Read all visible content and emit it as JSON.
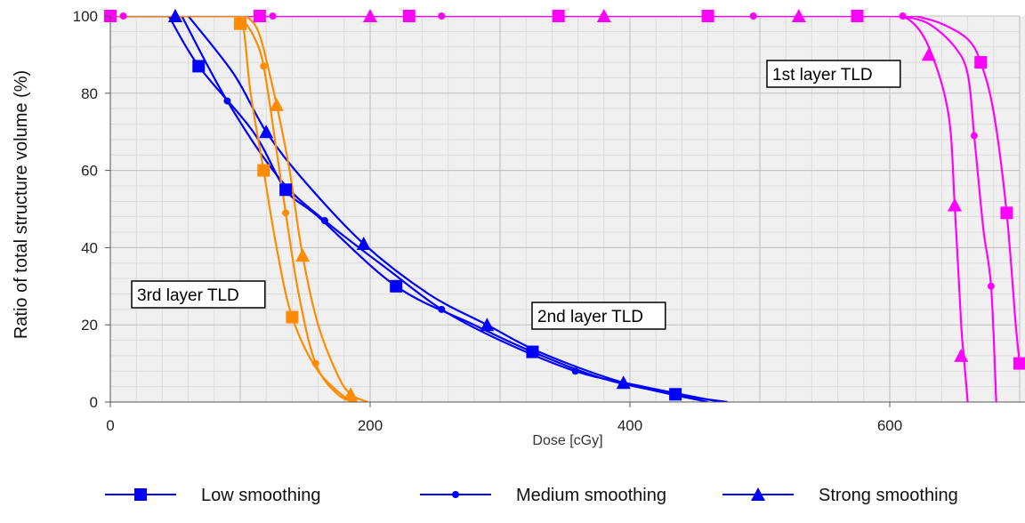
{
  "chart_data": {
    "type": "line",
    "xlabel": "Dose [cGy]",
    "ylabel": "Ratio of total structure volume (%)",
    "xlim": [
      0,
      700
    ],
    "ylim": [
      0,
      100
    ],
    "x_ticks": [
      "0",
      "200",
      "400",
      "600"
    ],
    "y_ticks": [
      "0",
      "20",
      "40",
      "60",
      "80",
      "100"
    ],
    "grid": true,
    "legend_position": "bottom",
    "groups": [
      {
        "label": "1st layer TLD",
        "color": "#ff00ff",
        "series": [
          {
            "name": "Low smoothing",
            "marker": "square",
            "points": [
              [
                620,
                100
              ],
              [
                640,
                98
              ],
              [
                660,
                94
              ],
              [
                670,
                88
              ],
              [
                680,
                75
              ],
              [
                690,
                49
              ],
              [
                697,
                20
              ],
              [
                700,
                10
              ]
            ],
            "marker_values": [
              [
                0,
                100
              ],
              [
                115,
                100
              ],
              [
                230,
                100
              ],
              [
                345,
                100
              ],
              [
                460,
                100
              ],
              [
                575,
                100
              ],
              [
                670,
                88
              ],
              [
                690,
                49
              ],
              [
                700,
                10
              ]
            ]
          },
          {
            "name": "Medium smoothing",
            "marker": "circle",
            "points": [
              [
                610,
                100
              ],
              [
                630,
                98
              ],
              [
                650,
                92
              ],
              [
                660,
                85
              ],
              [
                665,
                69
              ],
              [
                672,
                45
              ],
              [
                678,
                30
              ],
              [
                682,
                0
              ]
            ],
            "marker_values": [
              [
                10,
                100
              ],
              [
                125,
                100
              ],
              [
                255,
                100
              ],
              [
                380,
                100
              ],
              [
                495,
                100
              ],
              [
                610,
                100
              ],
              [
                665,
                69
              ],
              [
                678,
                30
              ]
            ]
          },
          {
            "name": "Strong smoothing",
            "marker": "triangle",
            "points": [
              [
                600,
                100
              ],
              [
                615,
                99
              ],
              [
                630,
                92
              ],
              [
                645,
                75
              ],
              [
                650,
                51
              ],
              [
                655,
                20
              ],
              [
                657,
                12
              ],
              [
                660,
                0
              ]
            ],
            "marker_values": [
              [
                50,
                100
              ],
              [
                200,
                100
              ],
              [
                380,
                100
              ],
              [
                530,
                100
              ],
              [
                630,
                90
              ],
              [
                650,
                51
              ],
              [
                655,
                12
              ]
            ]
          }
        ]
      },
      {
        "label": "2nd layer TLD",
        "color": "#0000ff",
        "series": [
          {
            "name": "Low smoothing",
            "marker": "square",
            "points": [
              [
                45,
                100
              ],
              [
                68,
                87
              ],
              [
                110,
                70
              ],
              [
                135,
                55
              ],
              [
                160,
                48
              ],
              [
                220,
                30
              ],
              [
                280,
                20
              ],
              [
                325,
                13
              ],
              [
                380,
                6
              ],
              [
                435,
                2
              ],
              [
                475,
                0
              ]
            ],
            "marker_values": [
              [
                68,
                87
              ],
              [
                135,
                55
              ],
              [
                220,
                30
              ],
              [
                325,
                13
              ],
              [
                435,
                2
              ]
            ]
          },
          {
            "name": "Medium smoothing",
            "marker": "circle",
            "points": [
              [
                55,
                100
              ],
              [
                90,
                78
              ],
              [
                130,
                58
              ],
              [
                165,
                47
              ],
              [
                215,
                34
              ],
              [
                255,
                24
              ],
              [
                300,
                16
              ],
              [
                358,
                8
              ],
              [
                410,
                4
              ],
              [
                470,
                0
              ]
            ],
            "marker_values": [
              [
                90,
                78
              ],
              [
                165,
                47
              ],
              [
                255,
                24
              ],
              [
                358,
                8
              ]
            ]
          },
          {
            "name": "Strong smoothing",
            "marker": "triangle",
            "points": [
              [
                60,
                100
              ],
              [
                95,
                85
              ],
              [
                120,
                70
              ],
              [
                150,
                57
              ],
              [
                195,
                41
              ],
              [
                245,
                28
              ],
              [
                290,
                20
              ],
              [
                330,
                13
              ],
              [
                395,
                5
              ],
              [
                460,
                0
              ]
            ],
            "marker_values": [
              [
                50,
                100
              ],
              [
                120,
                70
              ],
              [
                195,
                41
              ],
              [
                290,
                20
              ],
              [
                395,
                5
              ]
            ]
          }
        ]
      },
      {
        "label": "3rd layer TLD",
        "color": "#ff8c00",
        "series": [
          {
            "name": "Low smoothing",
            "marker": "square",
            "points": [
              [
                95,
                100
              ],
              [
                102,
                98
              ],
              [
                108,
                80
              ],
              [
                118,
                60
              ],
              [
                128,
                40
              ],
              [
                140,
                22
              ],
              [
                160,
                8
              ],
              [
                185,
                0
              ]
            ],
            "marker_values": [
              [
                100,
                98
              ],
              [
                118,
                60
              ],
              [
                140,
                22
              ]
            ]
          },
          {
            "name": "Medium smoothing",
            "marker": "circle",
            "points": [
              [
                100,
                100
              ],
              [
                110,
                95
              ],
              [
                118,
                87
              ],
              [
                128,
                65
              ],
              [
                135,
                49
              ],
              [
                145,
                28
              ],
              [
                158,
                10
              ],
              [
                175,
                2
              ],
              [
                190,
                0
              ]
            ],
            "marker_values": [
              [
                118,
                87
              ],
              [
                135,
                49
              ],
              [
                158,
                10
              ]
            ]
          },
          {
            "name": "Strong smoothing",
            "marker": "triangle",
            "points": [
              [
                105,
                100
              ],
              [
                115,
                95
              ],
              [
                128,
                77
              ],
              [
                138,
                60
              ],
              [
                148,
                38
              ],
              [
                160,
                20
              ],
              [
                175,
                7
              ],
              [
                185,
                2
              ],
              [
                198,
                0
              ]
            ],
            "marker_values": [
              [
                128,
                77
              ],
              [
                148,
                38
              ],
              [
                185,
                2
              ]
            ]
          }
        ]
      }
    ],
    "legend": [
      {
        "name": "Low smoothing",
        "marker": "square"
      },
      {
        "name": "Medium smoothing",
        "marker": "circle"
      },
      {
        "name": "Strong smoothing",
        "marker": "triangle"
      }
    ],
    "legend_color": "#0000ff"
  }
}
